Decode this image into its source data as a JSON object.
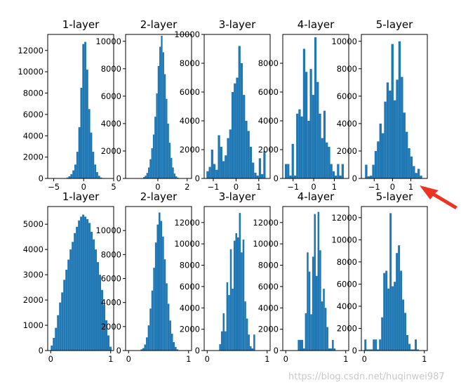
{
  "watermark": "https://blog.csdn.net/huqinwei987",
  "colors": {
    "bar": "#1f77b4",
    "arrow": "#ee3324",
    "axis": "#000000"
  },
  "chart_data": [
    {
      "type": "bar",
      "title": "1-layer",
      "xlim": [
        -6,
        5
      ],
      "ylim": [
        0,
        13500
      ],
      "xticks": [
        -5,
        0,
        5
      ],
      "yticks": [
        0,
        2000,
        4000,
        6000,
        8000,
        10000,
        12000
      ],
      "bins": [
        [
          -3.2,
          -2.87,
          20
        ],
        [
          -2.87,
          -2.54,
          80
        ],
        [
          -2.54,
          -2.21,
          200
        ],
        [
          -2.21,
          -1.88,
          400
        ],
        [
          -1.88,
          -1.55,
          750
        ],
        [
          -1.55,
          -1.22,
          1300
        ],
        [
          -1.22,
          -0.89,
          2500
        ],
        [
          -0.89,
          -0.56,
          4800
        ],
        [
          -0.56,
          -0.23,
          8500
        ],
        [
          -0.23,
          0.1,
          12600
        ],
        [
          0.1,
          0.43,
          12800
        ],
        [
          0.43,
          0.76,
          10200
        ],
        [
          0.76,
          1.09,
          6500
        ],
        [
          1.09,
          1.42,
          4300
        ],
        [
          1.42,
          1.75,
          2500
        ],
        [
          1.75,
          2.08,
          1300
        ],
        [
          2.08,
          2.41,
          600
        ],
        [
          2.41,
          2.74,
          250
        ],
        [
          2.74,
          3.07,
          80
        ],
        [
          3.07,
          3.4,
          20
        ]
      ]
    },
    {
      "type": "bar",
      "title": "2-layer",
      "xlim": [
        -2.2,
        2.3
      ],
      "ylim": [
        0,
        10500
      ],
      "xticks": [
        0,
        2
      ],
      "yticks": [
        0,
        2000,
        4000,
        6000,
        8000,
        10000
      ],
      "bins": [
        [
          -1.0,
          -0.89,
          100
        ],
        [
          -0.89,
          -0.78,
          200
        ],
        [
          -0.78,
          -0.67,
          400
        ],
        [
          -0.67,
          -0.56,
          800
        ],
        [
          -0.56,
          -0.45,
          1400
        ],
        [
          -0.45,
          -0.34,
          2200
        ],
        [
          -0.34,
          -0.23,
          3200
        ],
        [
          -0.23,
          -0.12,
          4500
        ],
        [
          -0.12,
          -0.01,
          6200
        ],
        [
          -0.01,
          0.1,
          8200
        ],
        [
          0.1,
          0.21,
          9600
        ],
        [
          0.21,
          0.32,
          10400
        ],
        [
          0.32,
          0.43,
          9200
        ],
        [
          0.43,
          0.54,
          7600
        ],
        [
          0.54,
          0.65,
          5800
        ],
        [
          0.65,
          0.76,
          4000
        ],
        [
          0.76,
          0.87,
          2600
        ],
        [
          0.87,
          0.98,
          1500
        ],
        [
          0.98,
          1.09,
          800
        ],
        [
          1.09,
          1.2,
          350
        ],
        [
          1.2,
          1.31,
          150
        ],
        [
          1.31,
          1.42,
          60
        ]
      ]
    },
    {
      "type": "bar",
      "title": "3-layer",
      "xlim": [
        -1.4,
        1.5
      ],
      "ylim": [
        0,
        10000
      ],
      "xticks": [
        -1,
        0,
        1
      ],
      "yticks": [
        0,
        2000,
        4000,
        6000,
        8000,
        10000
      ],
      "bins": [
        [
          -1.3,
          -1.2,
          500
        ],
        [
          -1.2,
          -1.1,
          800
        ],
        [
          -1.1,
          -1.0,
          2000
        ],
        [
          -1.0,
          -0.9,
          1000
        ],
        [
          -0.9,
          -0.8,
          600
        ],
        [
          -0.8,
          -0.7,
          3000
        ],
        [
          -0.7,
          -0.6,
          2200
        ],
        [
          -0.6,
          -0.5,
          1200
        ],
        [
          -0.5,
          -0.4,
          1600
        ],
        [
          -0.4,
          -0.3,
          2800
        ],
        [
          -0.3,
          -0.2,
          3400
        ],
        [
          -0.2,
          -0.1,
          6000
        ],
        [
          -0.1,
          0.0,
          6600
        ],
        [
          0.0,
          0.1,
          7000
        ],
        [
          0.1,
          0.2,
          9200
        ],
        [
          0.2,
          0.3,
          8000
        ],
        [
          0.3,
          0.4,
          5800
        ],
        [
          0.4,
          0.5,
          4000
        ],
        [
          0.5,
          0.6,
          3300
        ],
        [
          0.6,
          0.7,
          2200
        ],
        [
          0.7,
          0.8,
          1100
        ],
        [
          0.8,
          0.9,
          400
        ],
        [
          0.9,
          1.0,
          200
        ],
        [
          1.0,
          1.1,
          1400
        ],
        [
          1.1,
          1.2,
          300
        ],
        [
          1.2,
          1.3,
          1900
        ]
      ]
    },
    {
      "type": "bar",
      "title": "4-layer",
      "xlim": [
        -1.5,
        1.7
      ],
      "ylim": [
        0,
        10000
      ],
      "xticks": [
        -1,
        0,
        1
      ],
      "yticks": [
        0,
        2000,
        4000,
        6000,
        8000
      ],
      "bins": [
        [
          -1.4,
          -1.29,
          1000
        ],
        [
          -1.29,
          -1.18,
          1000
        ],
        [
          -1.18,
          -1.07,
          200
        ],
        [
          -1.07,
          -0.96,
          2400
        ],
        [
          -0.96,
          -0.85,
          200
        ],
        [
          -0.85,
          -0.74,
          4500
        ],
        [
          -0.74,
          -0.63,
          4800
        ],
        [
          -0.63,
          -0.52,
          4300
        ],
        [
          -0.52,
          -0.41,
          9000
        ],
        [
          -0.41,
          -0.3,
          7400
        ],
        [
          -0.3,
          -0.19,
          4000
        ],
        [
          -0.19,
          -0.08,
          7600
        ],
        [
          -0.08,
          0.03,
          5800
        ],
        [
          0.03,
          0.14,
          9800
        ],
        [
          0.14,
          0.25,
          6700
        ],
        [
          0.25,
          0.36,
          4500
        ],
        [
          0.36,
          0.47,
          2800
        ],
        [
          0.47,
          0.58,
          4700
        ],
        [
          0.58,
          0.69,
          2500
        ],
        [
          0.69,
          0.8,
          2200
        ],
        [
          0.8,
          0.91,
          1000
        ],
        [
          0.91,
          1.02,
          500
        ],
        [
          1.02,
          1.13,
          200
        ],
        [
          1.13,
          1.24,
          1000
        ],
        [
          1.24,
          1.35,
          200
        ],
        [
          1.35,
          1.46,
          1000
        ]
      ]
    },
    {
      "type": "bar",
      "title": "5-layer",
      "xlim": [
        -1.7,
        1.9
      ],
      "ylim": [
        0,
        10500
      ],
      "xticks": [
        -1,
        0,
        1
      ],
      "yticks": [
        0,
        2000,
        4000,
        6000,
        8000,
        10000
      ],
      "bins": [
        [
          -1.5,
          -1.37,
          1000
        ],
        [
          -1.37,
          -1.24,
          150
        ],
        [
          -1.24,
          -1.11,
          200
        ],
        [
          -1.11,
          -0.98,
          1000
        ],
        [
          -0.98,
          -0.85,
          2000
        ],
        [
          -0.85,
          -0.72,
          2700
        ],
        [
          -0.72,
          -0.59,
          4000
        ],
        [
          -0.59,
          -0.46,
          3300
        ],
        [
          -0.46,
          -0.33,
          5600
        ],
        [
          -0.33,
          -0.2,
          7000
        ],
        [
          -0.2,
          -0.07,
          6400
        ],
        [
          -0.07,
          0.06,
          9800
        ],
        [
          0.06,
          0.19,
          5700
        ],
        [
          0.19,
          0.32,
          7200
        ],
        [
          0.32,
          0.45,
          10000
        ],
        [
          0.45,
          0.58,
          7400
        ],
        [
          0.58,
          0.71,
          4800
        ],
        [
          0.71,
          0.84,
          3400
        ],
        [
          0.84,
          0.97,
          2200
        ],
        [
          0.97,
          1.1,
          1600
        ],
        [
          1.1,
          1.23,
          900
        ],
        [
          1.23,
          1.36,
          400
        ],
        [
          1.36,
          1.49,
          700
        ],
        [
          1.49,
          1.62,
          200
        ]
      ]
    },
    {
      "type": "bar",
      "title": "1-layer",
      "xlim": [
        -0.05,
        1.05
      ],
      "ylim": [
        0,
        5700
      ],
      "xticks": [
        0,
        1
      ],
      "yticks": [
        0,
        1000,
        2000,
        3000,
        4000,
        5000
      ],
      "bins": [
        [
          0.0,
          0.035,
          200
        ],
        [
          0.035,
          0.07,
          500
        ],
        [
          0.07,
          0.105,
          900
        ],
        [
          0.105,
          0.14,
          1400
        ],
        [
          0.14,
          0.175,
          1900
        ],
        [
          0.175,
          0.21,
          2300
        ],
        [
          0.21,
          0.245,
          2800
        ],
        [
          0.245,
          0.28,
          3200
        ],
        [
          0.28,
          0.315,
          3600
        ],
        [
          0.315,
          0.35,
          4000
        ],
        [
          0.35,
          0.385,
          4300
        ],
        [
          0.385,
          0.42,
          4650
        ],
        [
          0.42,
          0.455,
          4900
        ],
        [
          0.455,
          0.49,
          5150
        ],
        [
          0.49,
          0.525,
          5300
        ],
        [
          0.525,
          0.56,
          5380
        ],
        [
          0.56,
          0.595,
          5300
        ],
        [
          0.595,
          0.63,
          5200
        ],
        [
          0.63,
          0.665,
          5050
        ],
        [
          0.665,
          0.7,
          4700
        ],
        [
          0.7,
          0.735,
          4400
        ],
        [
          0.735,
          0.77,
          4000
        ],
        [
          0.77,
          0.805,
          3500
        ],
        [
          0.805,
          0.84,
          3000
        ],
        [
          0.84,
          0.875,
          2400
        ],
        [
          0.875,
          0.91,
          1800
        ],
        [
          0.91,
          0.945,
          1200
        ],
        [
          0.945,
          0.98,
          600
        ],
        [
          0.98,
          1.015,
          150
        ]
      ]
    },
    {
      "type": "bar",
      "title": "2-layer",
      "xlim": [
        -0.05,
        1.05
      ],
      "ylim": [
        0,
        12000
      ],
      "xticks": [
        0,
        1
      ],
      "yticks": [
        0,
        2000,
        4000,
        6000,
        8000,
        10000
      ],
      "bins": [
        [
          0.2,
          0.23,
          100
        ],
        [
          0.23,
          0.26,
          200
        ],
        [
          0.26,
          0.29,
          500
        ],
        [
          0.29,
          0.32,
          1100
        ],
        [
          0.32,
          0.35,
          2100
        ],
        [
          0.35,
          0.38,
          3500
        ],
        [
          0.38,
          0.41,
          5000
        ],
        [
          0.41,
          0.44,
          6900
        ],
        [
          0.44,
          0.47,
          9000
        ],
        [
          0.47,
          0.5,
          10500
        ],
        [
          0.5,
          0.53,
          11500
        ],
        [
          0.53,
          0.56,
          10800
        ],
        [
          0.56,
          0.59,
          9500
        ],
        [
          0.59,
          0.62,
          7600
        ],
        [
          0.62,
          0.65,
          5600
        ],
        [
          0.65,
          0.68,
          3900
        ],
        [
          0.68,
          0.71,
          2500
        ],
        [
          0.71,
          0.74,
          1400
        ],
        [
          0.74,
          0.77,
          700
        ],
        [
          0.77,
          0.8,
          300
        ],
        [
          0.8,
          0.83,
          100
        ]
      ]
    },
    {
      "type": "bar",
      "title": "3-layer",
      "xlim": [
        -0.05,
        1.05
      ],
      "ylim": [
        0,
        13500
      ],
      "xticks": [
        0,
        1
      ],
      "yticks": [
        0,
        2000,
        4000,
        6000,
        8000,
        10000,
        12000
      ],
      "bins": [
        [
          0.0,
          0.1,
          0
        ],
        [
          0.1,
          0.2,
          0
        ],
        [
          0.2,
          0.23,
          600
        ],
        [
          0.23,
          0.26,
          1800
        ],
        [
          0.26,
          0.29,
          3500
        ],
        [
          0.29,
          0.32,
          1800
        ],
        [
          0.32,
          0.35,
          6400
        ],
        [
          0.35,
          0.38,
          5200
        ],
        [
          0.38,
          0.41,
          9500
        ],
        [
          0.41,
          0.44,
          5800
        ],
        [
          0.44,
          0.47,
          10300
        ],
        [
          0.47,
          0.5,
          11000
        ],
        [
          0.5,
          0.53,
          10600
        ],
        [
          0.53,
          0.56,
          12900
        ],
        [
          0.56,
          0.59,
          9200
        ],
        [
          0.59,
          0.62,
          10400
        ],
        [
          0.62,
          0.65,
          4600
        ],
        [
          0.65,
          0.68,
          3000
        ],
        [
          0.68,
          0.71,
          1500
        ],
        [
          0.71,
          0.74,
          400
        ],
        [
          0.74,
          0.77,
          200
        ],
        [
          0.77,
          0.8,
          1500
        ]
      ]
    },
    {
      "type": "bar",
      "title": "4-layer",
      "xlim": [
        -0.05,
        1.05
      ],
      "ylim": [
        0,
        13500
      ],
      "xticks": [
        0,
        1
      ],
      "yticks": [
        0,
        2000,
        4000,
        6000,
        8000,
        10000,
        12000
      ],
      "bins": [
        [
          0.2,
          0.23,
          1000
        ],
        [
          0.23,
          0.26,
          1000
        ],
        [
          0.26,
          0.29,
          1000
        ],
        [
          0.29,
          0.32,
          200
        ],
        [
          0.32,
          0.35,
          3500
        ],
        [
          0.35,
          0.38,
          9200
        ],
        [
          0.38,
          0.41,
          7400
        ],
        [
          0.41,
          0.44,
          3400
        ],
        [
          0.44,
          0.47,
          8800
        ],
        [
          0.47,
          0.5,
          12800
        ],
        [
          0.5,
          0.53,
          7000
        ],
        [
          0.53,
          0.56,
          13000
        ],
        [
          0.56,
          0.59,
          9400
        ],
        [
          0.59,
          0.62,
          4600
        ],
        [
          0.62,
          0.65,
          5800
        ],
        [
          0.65,
          0.68,
          4000
        ],
        [
          0.68,
          0.71,
          2200
        ],
        [
          0.71,
          0.74,
          200
        ],
        [
          0.74,
          0.77,
          200
        ],
        [
          0.77,
          0.8,
          1000
        ],
        [
          0.8,
          0.83,
          200
        ]
      ]
    },
    {
      "type": "bar",
      "title": "5-layer",
      "xlim": [
        -0.05,
        1.05
      ],
      "ylim": [
        0,
        13000
      ],
      "xticks": [
        0,
        1
      ],
      "yticks": [
        0,
        2000,
        4000,
        6000,
        8000,
        10000,
        12000
      ],
      "bins": [
        [
          0.0,
          0.035,
          1000
        ],
        [
          0.035,
          0.07,
          100
        ],
        [
          0.07,
          0.105,
          100
        ],
        [
          0.105,
          0.14,
          100
        ],
        [
          0.14,
          0.175,
          1000
        ],
        [
          0.175,
          0.21,
          1000
        ],
        [
          0.21,
          0.245,
          100
        ],
        [
          0.245,
          0.28,
          1000
        ],
        [
          0.28,
          0.315,
          3000
        ],
        [
          0.315,
          0.35,
          7000
        ],
        [
          0.35,
          0.385,
          7200
        ],
        [
          0.385,
          0.42,
          5600
        ],
        [
          0.42,
          0.455,
          12400
        ],
        [
          0.455,
          0.49,
          5800
        ],
        [
          0.49,
          0.525,
          6200
        ],
        [
          0.525,
          0.56,
          8800
        ],
        [
          0.56,
          0.595,
          9500
        ],
        [
          0.595,
          0.63,
          7200
        ],
        [
          0.63,
          0.665,
          4600
        ],
        [
          0.665,
          0.7,
          3400
        ],
        [
          0.7,
          0.735,
          1400
        ],
        [
          0.735,
          0.77,
          600
        ],
        [
          0.77,
          0.805,
          100
        ],
        [
          0.805,
          0.84,
          100
        ],
        [
          0.84,
          0.875,
          1000
        ],
        [
          0.875,
          0.91,
          100
        ]
      ]
    }
  ]
}
